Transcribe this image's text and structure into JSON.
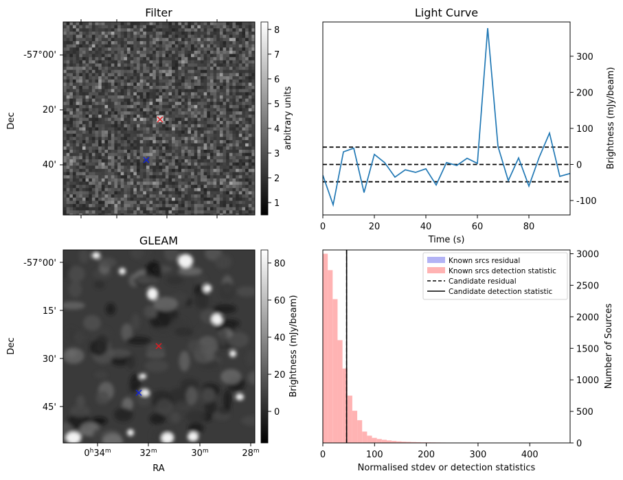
{
  "chart_data": [
    {
      "id": "filter",
      "type": "heatmap",
      "title": "Filter",
      "ylabel": "Dec",
      "ytick_labels": [
        "-57°00'",
        "20'",
        "40'"
      ],
      "colorbar": {
        "label": "arbitrary units",
        "range": [
          0.5,
          8.3
        ],
        "tick_labels": [
          "1",
          "2",
          "3",
          "4",
          "5",
          "6",
          "7",
          "8"
        ]
      },
      "markers": [
        {
          "symbol": "x",
          "color": "#e8191e",
          "label": "candidate"
        },
        {
          "symbol": "x",
          "color": "#0b1ee0",
          "label": "reference"
        }
      ]
    },
    {
      "id": "light_curve",
      "type": "line",
      "title": "Light Curve",
      "xlabel": "Time (s)",
      "ylabel": "Brightness (mJy/beam)",
      "xlim": [
        0,
        96
      ],
      "ylim": [
        -140,
        395
      ],
      "xtick_labels": [
        "0",
        "20",
        "40",
        "60",
        "80"
      ],
      "ytick_labels": [
        "-100",
        "0",
        "100",
        "200",
        "300"
      ],
      "series": [
        {
          "color": "#1f77b4",
          "x": [
            0,
            4,
            8,
            12,
            16,
            20,
            24,
            28,
            32,
            36,
            40,
            44,
            48,
            52,
            56,
            60,
            64,
            68,
            72,
            76,
            80,
            84,
            88,
            92,
            96
          ],
          "y": [
            -30,
            -112,
            35,
            45,
            -78,
            28,
            5,
            -35,
            -15,
            -22,
            -12,
            -57,
            5,
            -3,
            17,
            3,
            378,
            50,
            -45,
            18,
            -60,
            20,
            87,
            -33,
            -25
          ]
        }
      ],
      "hlines": [
        {
          "y": 48,
          "style": "dashed",
          "color": "#000000"
        },
        {
          "y": 0,
          "style": "dashed",
          "color": "#000000"
        },
        {
          "y": -48,
          "style": "dashed",
          "color": "#000000"
        }
      ]
    },
    {
      "id": "gleam",
      "type": "heatmap",
      "title": "GLEAM",
      "xlabel": "RA",
      "ylabel": "Dec",
      "xtick_labels": [
        {
          "main": "0",
          "sup1": "h",
          "mid": "34",
          "sup2": "m"
        },
        {
          "main": "32",
          "sup1": "m",
          "mid": "",
          "sup2": ""
        },
        {
          "main": "30",
          "sup1": "m",
          "mid": "",
          "sup2": ""
        },
        {
          "main": "28",
          "sup1": "m",
          "mid": "",
          "sup2": ""
        }
      ],
      "ytick_labels": [
        "-57°00'",
        "15'",
        "30'",
        "45'"
      ],
      "colorbar": {
        "label": "Brightness (mJy/beam)",
        "range": [
          -17,
          87
        ],
        "tick_labels": [
          "0",
          "20",
          "40",
          "60",
          "80"
        ]
      },
      "markers": [
        {
          "symbol": "x",
          "color": "#e8191e",
          "label": "candidate"
        },
        {
          "symbol": "x",
          "color": "#0b1ee0",
          "label": "reference"
        }
      ]
    },
    {
      "id": "histogram",
      "type": "bar",
      "xlabel": "Normalised stdev or detection statistics",
      "ylabel": "Number of Sources",
      "xlim": [
        0,
        478
      ],
      "ylim": [
        0,
        3060
      ],
      "xtick_labels": [
        "0",
        "100",
        "200",
        "300",
        "400"
      ],
      "ytick_labels": [
        "0",
        "500",
        "1000",
        "1500",
        "2000",
        "2500",
        "3000"
      ],
      "bin_width": 9.5,
      "series": [
        {
          "name": "Known srcs residual",
          "color": "#b3b3f5",
          "values": []
        },
        {
          "name": "Known srcs detection statistic",
          "color": "#ffb3b3",
          "values": [
            3000,
            2740,
            2280,
            1630,
            1180,
            750,
            510,
            360,
            180,
            115,
            80,
            62,
            50,
            40,
            32,
            25,
            20,
            17,
            14,
            12,
            10,
            9,
            8,
            7,
            6,
            5,
            5,
            4,
            4,
            3,
            3,
            3,
            2,
            2,
            2,
            2,
            2,
            1,
            1,
            1,
            1,
            1,
            1,
            1,
            1,
            1,
            1,
            1
          ]
        }
      ],
      "vlines": [
        {
          "name": "Candidate residual",
          "x": 46,
          "style": "dashed",
          "color": "#000000"
        },
        {
          "name": "Candidate detection statistic",
          "x": 46,
          "style": "solid",
          "color": "#000000"
        }
      ],
      "legend_position": "top-right"
    }
  ]
}
